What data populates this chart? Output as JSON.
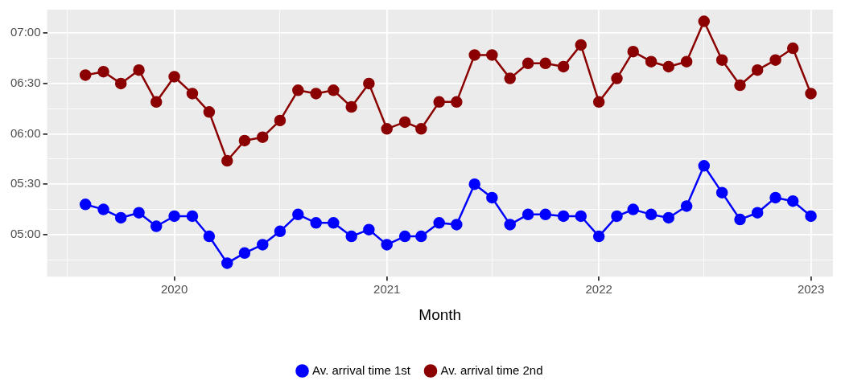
{
  "chart_data": {
    "type": "line",
    "xlabel": "Month",
    "x": [
      "2019-08",
      "2019-09",
      "2019-10",
      "2019-11",
      "2019-12",
      "2020-01",
      "2020-02",
      "2020-03",
      "2020-04",
      "2020-05",
      "2020-06",
      "2020-07",
      "2020-08",
      "2020-09",
      "2020-10",
      "2020-11",
      "2020-12",
      "2021-01",
      "2021-02",
      "2021-03",
      "2021-04",
      "2021-05",
      "2021-06",
      "2021-07",
      "2021-08",
      "2021-09",
      "2021-10",
      "2021-11",
      "2021-12",
      "2022-01",
      "2022-02",
      "2022-03",
      "2022-04",
      "2022-05",
      "2022-06",
      "2022-07",
      "2022-08",
      "2022-09",
      "2022-10",
      "2022-11",
      "2022-12",
      "2023-01"
    ],
    "series": [
      {
        "name": "Av. arrival time 1st",
        "color": "#0000ff",
        "values": [
          5.3,
          5.25,
          5.167,
          5.217,
          5.083,
          5.183,
          5.183,
          4.983,
          4.717,
          4.817,
          4.9,
          5.033,
          5.2,
          5.117,
          5.117,
          4.983,
          5.05,
          4.9,
          4.983,
          4.983,
          5.117,
          5.1,
          5.5,
          5.367,
          5.1,
          5.2,
          5.2,
          5.183,
          5.183,
          4.983,
          5.183,
          5.25,
          5.2,
          5.167,
          5.283,
          5.683,
          5.417,
          5.15,
          5.217,
          5.367,
          5.333,
          5.183
        ]
      },
      {
        "name": "Av. arrival time 2nd",
        "color": "#8b0000",
        "values": [
          6.583,
          6.617,
          6.5,
          6.633,
          6.317,
          6.567,
          6.4,
          6.217,
          5.733,
          5.933,
          5.967,
          6.133,
          6.433,
          6.4,
          6.433,
          6.267,
          6.5,
          6.05,
          6.117,
          6.05,
          6.317,
          6.317,
          6.783,
          6.783,
          6.55,
          6.7,
          6.7,
          6.667,
          6.883,
          6.317,
          6.55,
          6.817,
          6.717,
          6.667,
          6.717,
          7.117,
          6.733,
          6.483,
          6.633,
          6.733,
          6.85,
          6.4
        ]
      }
    ],
    "xlim": [
      "2019-05-27",
      "2023-02-08"
    ],
    "xticks": [
      {
        "value": "2019-07",
        "label": null
      },
      "2020",
      {
        "value": "2020-07",
        "label": null
      },
      "2021",
      {
        "value": "2021-07",
        "label": null
      },
      "2022",
      {
        "value": "2022-07",
        "label": null
      },
      "2023"
    ],
    "ylim": [
      4.583,
      7.233
    ],
    "yticks": [
      {
        "value": 4.75,
        "label": null
      },
      {
        "value": 5,
        "label": "05:00"
      },
      {
        "value": 5.25,
        "label": null
      },
      {
        "value": 5.5,
        "label": "05:30"
      },
      {
        "value": 5.75,
        "label": null
      },
      {
        "value": 6,
        "label": "06:00"
      },
      {
        "value": 6.25,
        "label": null
      },
      {
        "value": 6.5,
        "label": "06:30"
      },
      {
        "value": 6.75,
        "label": null
      },
      {
        "value": 7,
        "label": "07:00"
      }
    ],
    "grid": true,
    "legend": "bottom",
    "marker": "circle",
    "line_style": "solid"
  }
}
